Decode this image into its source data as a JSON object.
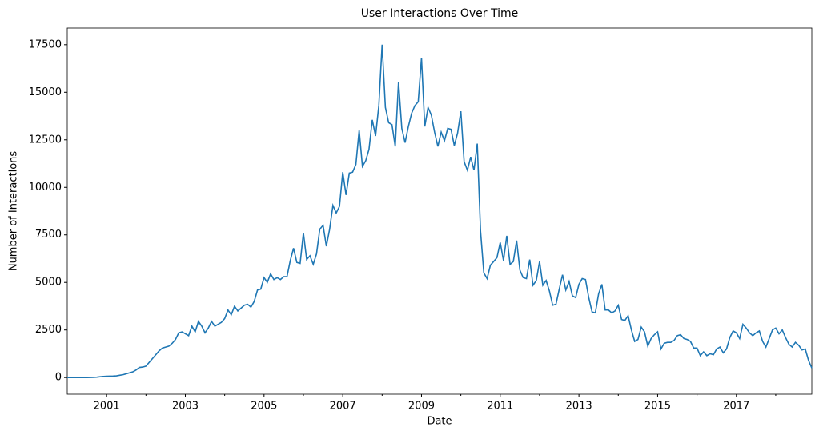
{
  "chart_data": {
    "type": "line",
    "title": "User Interactions Over Time",
    "xlabel": "Date",
    "ylabel": "Number of Interactions",
    "color": "#1f77b4",
    "x": [
      "2000-01",
      "2000-02",
      "2000-03",
      "2000-04",
      "2000-05",
      "2000-06",
      "2000-07",
      "2000-08",
      "2000-09",
      "2000-10",
      "2000-11",
      "2000-12",
      "2001-01",
      "2001-02",
      "2001-03",
      "2001-04",
      "2001-05",
      "2001-06",
      "2001-07",
      "2001-08",
      "2001-09",
      "2001-10",
      "2001-11",
      "2001-12",
      "2002-01",
      "2002-02",
      "2002-03",
      "2002-04",
      "2002-05",
      "2002-06",
      "2002-07",
      "2002-08",
      "2002-09",
      "2002-10",
      "2002-11",
      "2002-12",
      "2003-01",
      "2003-02",
      "2003-03",
      "2003-04",
      "2003-05",
      "2003-06",
      "2003-07",
      "2003-08",
      "2003-09",
      "2003-10",
      "2003-11",
      "2003-12",
      "2004-01",
      "2004-02",
      "2004-03",
      "2004-04",
      "2004-05",
      "2004-06",
      "2004-07",
      "2004-08",
      "2004-09",
      "2004-10",
      "2004-11",
      "2004-12",
      "2005-01",
      "2005-02",
      "2005-03",
      "2005-04",
      "2005-05",
      "2005-06",
      "2005-07",
      "2005-08",
      "2005-09",
      "2005-10",
      "2005-11",
      "2005-12",
      "2006-01",
      "2006-02",
      "2006-03",
      "2006-04",
      "2006-05",
      "2006-06",
      "2006-07",
      "2006-08",
      "2006-09",
      "2006-10",
      "2006-11",
      "2006-12",
      "2007-01",
      "2007-02",
      "2007-03",
      "2007-04",
      "2007-05",
      "2007-06",
      "2007-07",
      "2007-08",
      "2007-09",
      "2007-10",
      "2007-11",
      "2007-12",
      "2008-01",
      "2008-02",
      "2008-03",
      "2008-04",
      "2008-05",
      "2008-06",
      "2008-07",
      "2008-08",
      "2008-09",
      "2008-10",
      "2008-11",
      "2008-12",
      "2009-01",
      "2009-02",
      "2009-03",
      "2009-04",
      "2009-05",
      "2009-06",
      "2009-07",
      "2009-08",
      "2009-09",
      "2009-10",
      "2009-11",
      "2009-12",
      "2010-01",
      "2010-02",
      "2010-03",
      "2010-04",
      "2010-05",
      "2010-06",
      "2010-07",
      "2010-08",
      "2010-09",
      "2010-10",
      "2010-11",
      "2010-12",
      "2011-01",
      "2011-02",
      "2011-03",
      "2011-04",
      "2011-05",
      "2011-06",
      "2011-07",
      "2011-08",
      "2011-09",
      "2011-10",
      "2011-11",
      "2011-12",
      "2012-01",
      "2012-02",
      "2012-03",
      "2012-04",
      "2012-05",
      "2012-06",
      "2012-07",
      "2012-08",
      "2012-09",
      "2012-10",
      "2012-11",
      "2012-12",
      "2013-01",
      "2013-02",
      "2013-03",
      "2013-04",
      "2013-05",
      "2013-06",
      "2013-07",
      "2013-08",
      "2013-09",
      "2013-10",
      "2013-11",
      "2013-12",
      "2014-01",
      "2014-02",
      "2014-03",
      "2014-04",
      "2014-05",
      "2014-06",
      "2014-07",
      "2014-08",
      "2014-09",
      "2014-10",
      "2014-11",
      "2014-12",
      "2015-01",
      "2015-02",
      "2015-03",
      "2015-04",
      "2015-05",
      "2015-06",
      "2015-07",
      "2015-08",
      "2015-09",
      "2015-10",
      "2015-11",
      "2015-12",
      "2016-01",
      "2016-02",
      "2016-03",
      "2016-04",
      "2016-05",
      "2016-06",
      "2016-07",
      "2016-08",
      "2016-09",
      "2016-10",
      "2016-11",
      "2016-12",
      "2017-01",
      "2017-02",
      "2017-03",
      "2017-04",
      "2017-05",
      "2017-06",
      "2017-07",
      "2017-08",
      "2017-09",
      "2017-10",
      "2017-11",
      "2017-12",
      "2018-01",
      "2018-02",
      "2018-03",
      "2018-04",
      "2018-05",
      "2018-06",
      "2018-07",
      "2018-08",
      "2018-09",
      "2018-10",
      "2018-11",
      "2018-12"
    ],
    "values": [
      0,
      0,
      0,
      0,
      0,
      0,
      0,
      5,
      10,
      20,
      40,
      60,
      70,
      75,
      80,
      90,
      120,
      150,
      200,
      250,
      300,
      400,
      530,
      550,
      600,
      800,
      1000,
      1200,
      1400,
      1550,
      1600,
      1650,
      1800,
      2000,
      2350,
      2400,
      2300,
      2200,
      2700,
      2400,
      2950,
      2700,
      2350,
      2600,
      2950,
      2700,
      2800,
      2900,
      3100,
      3550,
      3300,
      3750,
      3500,
      3650,
      3800,
      3850,
      3700,
      4000,
      4600,
      4650,
      5250,
      5000,
      5450,
      5150,
      5250,
      5150,
      5300,
      5300,
      6150,
      6800,
      6050,
      6000,
      7600,
      6200,
      6400,
      5950,
      6500,
      7800,
      8000,
      6900,
      7800,
      9050,
      8650,
      9000,
      10800,
      9600,
      10750,
      10800,
      11200,
      13000,
      11100,
      11400,
      12000,
      13550,
      12700,
      14300,
      17500,
      14200,
      13400,
      13300,
      12150,
      15550,
      13100,
      12350,
      13200,
      13900,
      14300,
      14500,
      16800,
      13200,
      14200,
      13800,
      12900,
      12150,
      12900,
      12450,
      13100,
      13050,
      12200,
      12850,
      14000,
      11350,
      10900,
      11600,
      10900,
      12300,
      7700,
      5500,
      5200,
      5900,
      6100,
      6300,
      7100,
      6150,
      7450,
      5950,
      6100,
      7200,
      5650,
      5250,
      5200,
      6200,
      4850,
      5100,
      6100,
      4850,
      5100,
      4550,
      3800,
      3850,
      4650,
      5400,
      4600,
      5050,
      4300,
      4200,
      4900,
      5200,
      5150,
      4200,
      3450,
      3400,
      4400,
      4900,
      3550,
      3550,
      3400,
      3500,
      3800,
      3050,
      3000,
      3250,
      2500,
      1900,
      2000,
      2650,
      2400,
      1650,
      2050,
      2250,
      2400,
      1500,
      1800,
      1850,
      1850,
      1950,
      2200,
      2250,
      2050,
      2000,
      1900,
      1550,
      1550,
      1150,
      1350,
      1150,
      1250,
      1200,
      1500,
      1600,
      1300,
      1500,
      2100,
      2450,
      2350,
      2050,
      2800,
      2600,
      2350,
      2200,
      2350,
      2450,
      1900,
      1600,
      2050,
      2500,
      2600,
      2300,
      2500,
      2100,
      1750,
      1600,
      1850,
      1700,
      1450,
      1500,
      900,
      500
    ],
    "xlim": [
      "2000-01",
      "2018-12"
    ],
    "xticks": [
      2001,
      2003,
      2005,
      2007,
      2009,
      2011,
      2013,
      2015,
      2017
    ],
    "xminor_ticks": [
      2002,
      2004,
      2006,
      2008,
      2010,
      2012,
      2014,
      2016,
      2018
    ],
    "ylim": [
      -875,
      18375
    ],
    "yticks": [
      0,
      2500,
      5000,
      7500,
      10000,
      12500,
      15000,
      17500
    ]
  }
}
